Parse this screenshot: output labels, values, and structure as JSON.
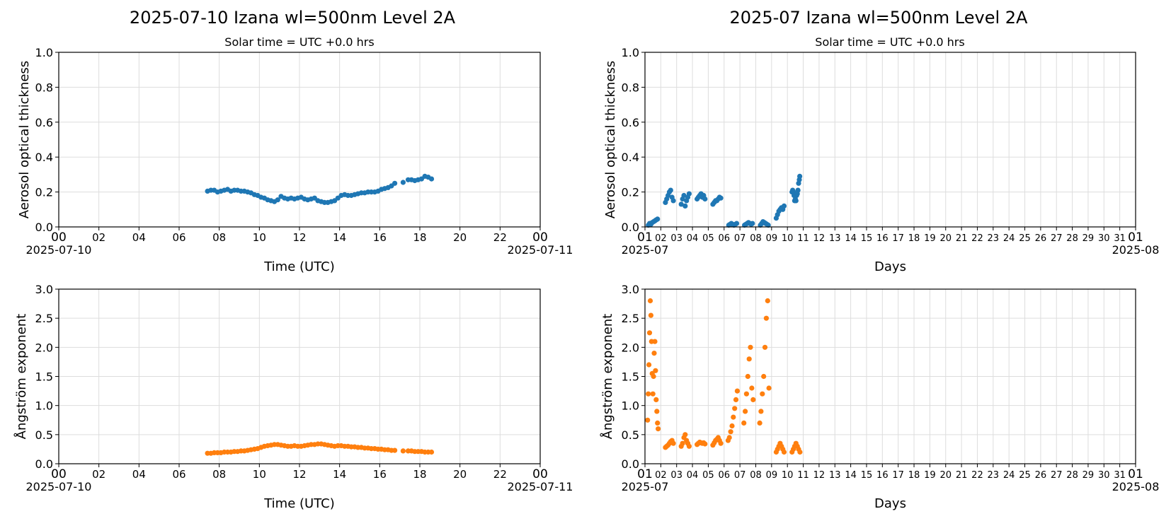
{
  "figure": {
    "left_title": "2025-07-10  Izana  wl=500nm  Level 2A",
    "right_title": "2025-07  Izana  wl=500nm  Level 2A",
    "left_subtitle": "Solar time = UTC +0.0 hrs",
    "right_subtitle": "Solar time = UTC +0.0 hrs"
  },
  "colors": {
    "aod": "#1f77b4",
    "angstrom": "#ff7f0e",
    "grid": "#dddddd"
  },
  "chart_data": [
    {
      "id": "daily-aod",
      "type": "scatter",
      "ylabel": "Aerosol optical thickness",
      "xlabel": "Time (UTC)",
      "ylim": [
        0,
        1.0
      ],
      "yticks": [
        "0.0",
        "0.2",
        "0.4",
        "0.6",
        "0.8",
        "1.0"
      ],
      "xlim": [
        "2025-07-10T00:00",
        "2025-07-11T00:00"
      ],
      "xticks": [
        "00",
        "02",
        "04",
        "06",
        "08",
        "10",
        "12",
        "14",
        "16",
        "18",
        "20",
        "22",
        "00"
      ],
      "x_start_label": "2025-07-10",
      "x_end_label": "2025-07-11",
      "grid": true,
      "series": [
        {
          "color": "#1f77b4",
          "x": [
            "07:25",
            "07:35",
            "07:45",
            "07:55",
            "08:05",
            "08:15",
            "08:25",
            "08:35",
            "08:45",
            "08:55",
            "09:05",
            "09:15",
            "09:25",
            "09:35",
            "09:45",
            "09:55",
            "10:05",
            "10:15",
            "10:25",
            "10:35",
            "10:45",
            "10:55",
            "11:05",
            "11:15",
            "11:25",
            "11:35",
            "11:45",
            "11:55",
            "12:05",
            "12:15",
            "12:25",
            "12:35",
            "12:45",
            "12:55",
            "13:05",
            "13:15",
            "13:25",
            "13:35",
            "13:45",
            "13:55",
            "14:05",
            "14:15",
            "14:25",
            "14:35",
            "14:45",
            "14:55",
            "15:05",
            "15:15",
            "15:25",
            "15:35",
            "15:45",
            "15:55",
            "16:05",
            "16:15",
            "16:25",
            "16:35",
            "16:45",
            "17:10",
            "17:25",
            "17:35",
            "17:45",
            "17:55",
            "18:05",
            "18:15",
            "18:25",
            "18:35"
          ],
          "y": [
            0.205,
            0.21,
            0.21,
            0.2,
            0.205,
            0.21,
            0.215,
            0.205,
            0.21,
            0.21,
            0.205,
            0.205,
            0.2,
            0.195,
            0.185,
            0.18,
            0.17,
            0.165,
            0.155,
            0.15,
            0.145,
            0.155,
            0.175,
            0.165,
            0.16,
            0.165,
            0.16,
            0.165,
            0.17,
            0.16,
            0.155,
            0.16,
            0.165,
            0.15,
            0.145,
            0.14,
            0.14,
            0.145,
            0.15,
            0.165,
            0.18,
            0.185,
            0.18,
            0.18,
            0.185,
            0.19,
            0.195,
            0.195,
            0.2,
            0.2,
            0.2,
            0.205,
            0.215,
            0.22,
            0.225,
            0.235,
            0.25,
            0.255,
            0.27,
            0.27,
            0.265,
            0.27,
            0.275,
            0.29,
            0.285,
            0.275
          ]
        }
      ]
    },
    {
      "id": "monthly-aod",
      "type": "scatter",
      "ylabel": "Aerosol optical thickness",
      "xlabel": "Days",
      "ylim": [
        0,
        1.0
      ],
      "yticks": [
        "0.0",
        "0.2",
        "0.4",
        "0.6",
        "0.8",
        "1.0"
      ],
      "xlim": [
        "2025-07-01",
        "2025-08-01"
      ],
      "xticks": [
        "01",
        "02",
        "03",
        "04",
        "05",
        "06",
        "07",
        "08",
        "09",
        "10",
        "11",
        "12",
        "13",
        "14",
        "15",
        "16",
        "17",
        "18",
        "19",
        "20",
        "21",
        "22",
        "23",
        "24",
        "25",
        "26",
        "27",
        "28",
        "29",
        "30",
        "31",
        "01"
      ],
      "x_start_label": "2025-07",
      "x_end_label": "2025-08",
      "grid": true,
      "series": [
        {
          "color": "#1f77b4",
          "x": [
            "07-01 05:00",
            "07-01 07:00",
            "07-01 09:00",
            "07-01 11:00",
            "07-01 13:00",
            "07-01 15:00",
            "07-01 17:00",
            "07-01 19:00",
            "07-02 07:00",
            "07-02 09:00",
            "07-02 11:00",
            "07-02 13:00",
            "07-02 15:00",
            "07-02 17:00",
            "07-02 19:00",
            "07-03 07:00",
            "07-03 09:00",
            "07-03 11:00",
            "07-03 13:00",
            "07-03 15:00",
            "07-03 17:00",
            "07-03 19:00",
            "07-04 07:00",
            "07-04 09:00",
            "07-04 11:00",
            "07-04 13:00",
            "07-04 15:00",
            "07-04 17:00",
            "07-04 19:00",
            "07-05 07:00",
            "07-05 09:00",
            "07-05 11:00",
            "07-05 13:00",
            "07-05 15:00",
            "07-05 17:00",
            "07-05 19:00",
            "07-06 07:00",
            "07-06 09:00",
            "07-06 11:00",
            "07-06 13:00",
            "07-06 15:00",
            "07-06 17:00",
            "07-06 19:00",
            "07-07 07:00",
            "07-07 09:00",
            "07-07 11:00",
            "07-07 13:00",
            "07-07 15:00",
            "07-07 17:00",
            "07-07 19:00",
            "07-08 07:00",
            "07-08 09:00",
            "07-08 11:00",
            "07-08 13:00",
            "07-08 15:00",
            "07-08 17:00",
            "07-08 19:00",
            "07-09 07:00",
            "07-09 09:00",
            "07-09 11:00",
            "07-09 13:00",
            "07-09 15:00",
            "07-09 17:00",
            "07-09 19:00",
            "07-10 07:00",
            "07-10 08:00",
            "07-10 09:00",
            "07-10 10:00",
            "07-10 11:00",
            "07-10 12:00",
            "07-10 13:00",
            "07-10 14:00",
            "07-10 15:00",
            "07-10 16:00",
            "07-10 17:00",
            "07-10 18:00",
            "07-10 18:40"
          ],
          "y": [
            0.01,
            0.02,
            0.015,
            0.025,
            0.03,
            0.035,
            0.04,
            0.045,
            0.14,
            0.16,
            0.18,
            0.2,
            0.21,
            0.17,
            0.15,
            0.13,
            0.16,
            0.18,
            0.12,
            0.15,
            0.17,
            0.19,
            0.16,
            0.17,
            0.18,
            0.19,
            0.17,
            0.18,
            0.16,
            0.13,
            0.14,
            0.15,
            0.15,
            0.16,
            0.17,
            0.165,
            0.01,
            0.015,
            0.02,
            0.015,
            0.01,
            0.015,
            0.02,
            0.01,
            0.015,
            0.02,
            0.025,
            0.02,
            0.015,
            0.02,
            0.01,
            0.02,
            0.03,
            0.025,
            0.02,
            0.015,
            0.01,
            0.05,
            0.07,
            0.09,
            0.1,
            0.11,
            0.1,
            0.12,
            0.2,
            0.21,
            0.2,
            0.18,
            0.15,
            0.16,
            0.15,
            0.18,
            0.19,
            0.21,
            0.25,
            0.27,
            0.29
          ]
        }
      ]
    },
    {
      "id": "daily-angstrom",
      "type": "scatter",
      "ylabel": "Ångström exponent",
      "xlabel": "Time (UTC)",
      "ylim": [
        0,
        3.0
      ],
      "yticks": [
        "0.0",
        "0.5",
        "1.0",
        "1.5",
        "2.0",
        "2.5",
        "3.0"
      ],
      "xlim": [
        "2025-07-10T00:00",
        "2025-07-11T00:00"
      ],
      "xticks": [
        "00",
        "02",
        "04",
        "06",
        "08",
        "10",
        "12",
        "14",
        "16",
        "18",
        "20",
        "22",
        "00"
      ],
      "x_start_label": "2025-07-10",
      "x_end_label": "2025-07-11",
      "grid": true,
      "series": [
        {
          "color": "#ff7f0e",
          "x": [
            "07:25",
            "07:35",
            "07:45",
            "07:55",
            "08:05",
            "08:15",
            "08:25",
            "08:35",
            "08:45",
            "08:55",
            "09:05",
            "09:15",
            "09:25",
            "09:35",
            "09:45",
            "09:55",
            "10:05",
            "10:15",
            "10:25",
            "10:35",
            "10:45",
            "10:55",
            "11:05",
            "11:15",
            "11:25",
            "11:35",
            "11:45",
            "11:55",
            "12:05",
            "12:15",
            "12:25",
            "12:35",
            "12:45",
            "12:55",
            "13:05",
            "13:15",
            "13:25",
            "13:35",
            "13:45",
            "13:55",
            "14:05",
            "14:15",
            "14:25",
            "14:35",
            "14:45",
            "14:55",
            "15:05",
            "15:15",
            "15:25",
            "15:35",
            "15:45",
            "15:55",
            "16:05",
            "16:15",
            "16:25",
            "16:35",
            "16:45",
            "17:10",
            "17:25",
            "17:35",
            "17:45",
            "17:55",
            "18:05",
            "18:15",
            "18:25",
            "18:35"
          ],
          "y": [
            0.18,
            0.18,
            0.19,
            0.19,
            0.19,
            0.2,
            0.2,
            0.2,
            0.21,
            0.21,
            0.22,
            0.22,
            0.23,
            0.24,
            0.25,
            0.26,
            0.28,
            0.3,
            0.31,
            0.32,
            0.33,
            0.33,
            0.32,
            0.31,
            0.3,
            0.3,
            0.31,
            0.3,
            0.3,
            0.31,
            0.32,
            0.33,
            0.33,
            0.34,
            0.34,
            0.33,
            0.32,
            0.31,
            0.3,
            0.31,
            0.31,
            0.3,
            0.3,
            0.29,
            0.29,
            0.28,
            0.28,
            0.27,
            0.27,
            0.26,
            0.26,
            0.25,
            0.25,
            0.24,
            0.24,
            0.23,
            0.23,
            0.22,
            0.22,
            0.22,
            0.21,
            0.21,
            0.21,
            0.2,
            0.2,
            0.2
          ]
        }
      ]
    },
    {
      "id": "monthly-angstrom",
      "type": "scatter",
      "ylabel": "Ångström exponent",
      "xlabel": "Days",
      "ylim": [
        0,
        3.0
      ],
      "yticks": [
        "0.0",
        "0.5",
        "1.0",
        "1.5",
        "2.0",
        "2.5",
        "3.0"
      ],
      "xlim": [
        "2025-07-01",
        "2025-08-01"
      ],
      "xticks": [
        "01",
        "02",
        "03",
        "04",
        "05",
        "06",
        "07",
        "08",
        "09",
        "10",
        "11",
        "12",
        "13",
        "14",
        "15",
        "16",
        "17",
        "18",
        "19",
        "20",
        "21",
        "22",
        "23",
        "24",
        "25",
        "26",
        "27",
        "28",
        "29",
        "30",
        "31",
        "01"
      ],
      "x_start_label": "2025-07",
      "x_end_label": "2025-08",
      "grid": true,
      "series": [
        {
          "color": "#ff7f0e",
          "x": [
            "07-01 04:00",
            "07-01 05:00",
            "07-01 06:00",
            "07-01 07:00",
            "07-01 08:00",
            "07-01 09:00",
            "07-01 10:00",
            "07-01 11:00",
            "07-01 12:00",
            "07-01 13:00",
            "07-01 14:00",
            "07-01 15:00",
            "07-01 16:00",
            "07-01 17:00",
            "07-01 18:00",
            "07-01 19:00",
            "07-01 20:00",
            "07-02 07:00",
            "07-02 09:00",
            "07-02 11:00",
            "07-02 13:00",
            "07-02 15:00",
            "07-02 17:00",
            "07-02 19:00",
            "07-03 07:00",
            "07-03 09:00",
            "07-03 11:00",
            "07-03 13:00",
            "07-03 15:00",
            "07-03 17:00",
            "07-03 19:00",
            "07-04 07:00",
            "07-04 09:00",
            "07-04 11:00",
            "07-04 13:00",
            "07-04 15:00",
            "07-04 17:00",
            "07-04 19:00",
            "07-05 07:00",
            "07-05 09:00",
            "07-05 11:00",
            "07-05 13:00",
            "07-05 15:00",
            "07-05 17:00",
            "07-05 19:00",
            "07-06 06:00",
            "07-06 08:00",
            "07-06 10:00",
            "07-06 12:00",
            "07-06 14:00",
            "07-06 16:00",
            "07-06 18:00",
            "07-06 20:00",
            "07-07 06:00",
            "07-07 08:00",
            "07-07 10:00",
            "07-07 12:00",
            "07-07 14:00",
            "07-07 16:00",
            "07-07 18:00",
            "07-07 20:00",
            "07-08 06:00",
            "07-08 08:00",
            "07-08 10:00",
            "07-08 12:00",
            "07-08 14:00",
            "07-08 16:00",
            "07-08 18:00",
            "07-08 20:00",
            "07-09 07:00",
            "07-09 09:00",
            "07-09 11:00",
            "07-09 13:00",
            "07-09 15:00",
            "07-09 17:00",
            "07-09 19:00",
            "07-10 07:00",
            "07-10 09:00",
            "07-10 11:00",
            "07-10 13:00",
            "07-10 15:00",
            "07-10 17:00",
            "07-10 19:00"
          ],
          "y": [
            0.75,
            1.2,
            1.7,
            2.25,
            2.8,
            2.55,
            2.1,
            1.55,
            1.2,
            1.5,
            1.9,
            2.1,
            1.6,
            1.1,
            0.9,
            0.7,
            0.6,
            0.28,
            0.3,
            0.32,
            0.35,
            0.38,
            0.4,
            0.35,
            0.3,
            0.35,
            0.45,
            0.5,
            0.4,
            0.35,
            0.3,
            0.33,
            0.35,
            0.37,
            0.36,
            0.35,
            0.36,
            0.34,
            0.32,
            0.36,
            0.4,
            0.42,
            0.45,
            0.4,
            0.35,
            0.4,
            0.45,
            0.55,
            0.65,
            0.8,
            0.95,
            1.1,
            1.25,
            0.7,
            0.9,
            1.2,
            1.5,
            1.8,
            2.0,
            1.3,
            1.1,
            0.7,
            0.9,
            1.2,
            1.5,
            2.0,
            2.5,
            2.8,
            1.3,
            0.2,
            0.25,
            0.3,
            0.35,
            0.3,
            0.25,
            0.2,
            0.2,
            0.25,
            0.3,
            0.35,
            0.3,
            0.25,
            0.2
          ]
        }
      ]
    }
  ]
}
